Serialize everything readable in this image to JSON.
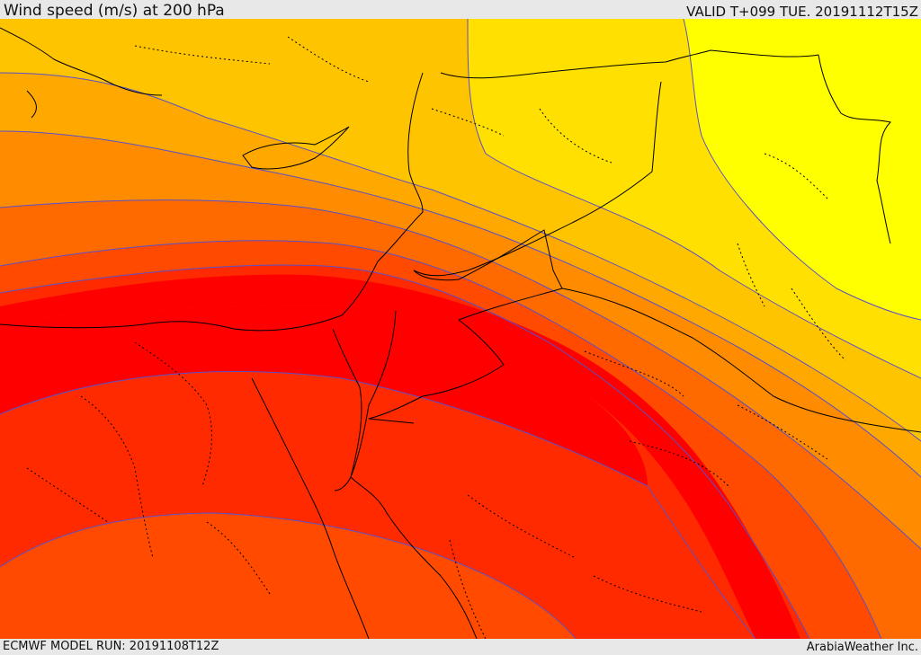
{
  "header": {
    "title": "Wind speed (m/s) at 200 hPa",
    "valid": "VALID T+099 TUE. 20191112T15Z"
  },
  "footer": {
    "model_run": "ECMWF MODEL RUN: 20191108T12Z",
    "credit": "ArabiaWeather Inc."
  },
  "colors": {
    "band_1": "#ffff00",
    "band_2": "#ffe000",
    "band_3": "#ffc400",
    "band_4": "#ffa800",
    "band_5": "#ff8c00",
    "band_6": "#ff6a00",
    "band_7": "#ff4a00",
    "band_8": "#ff2a00",
    "band_9": "#ff0000",
    "contour_line": "#5a50c8",
    "borders": "#000000"
  }
}
